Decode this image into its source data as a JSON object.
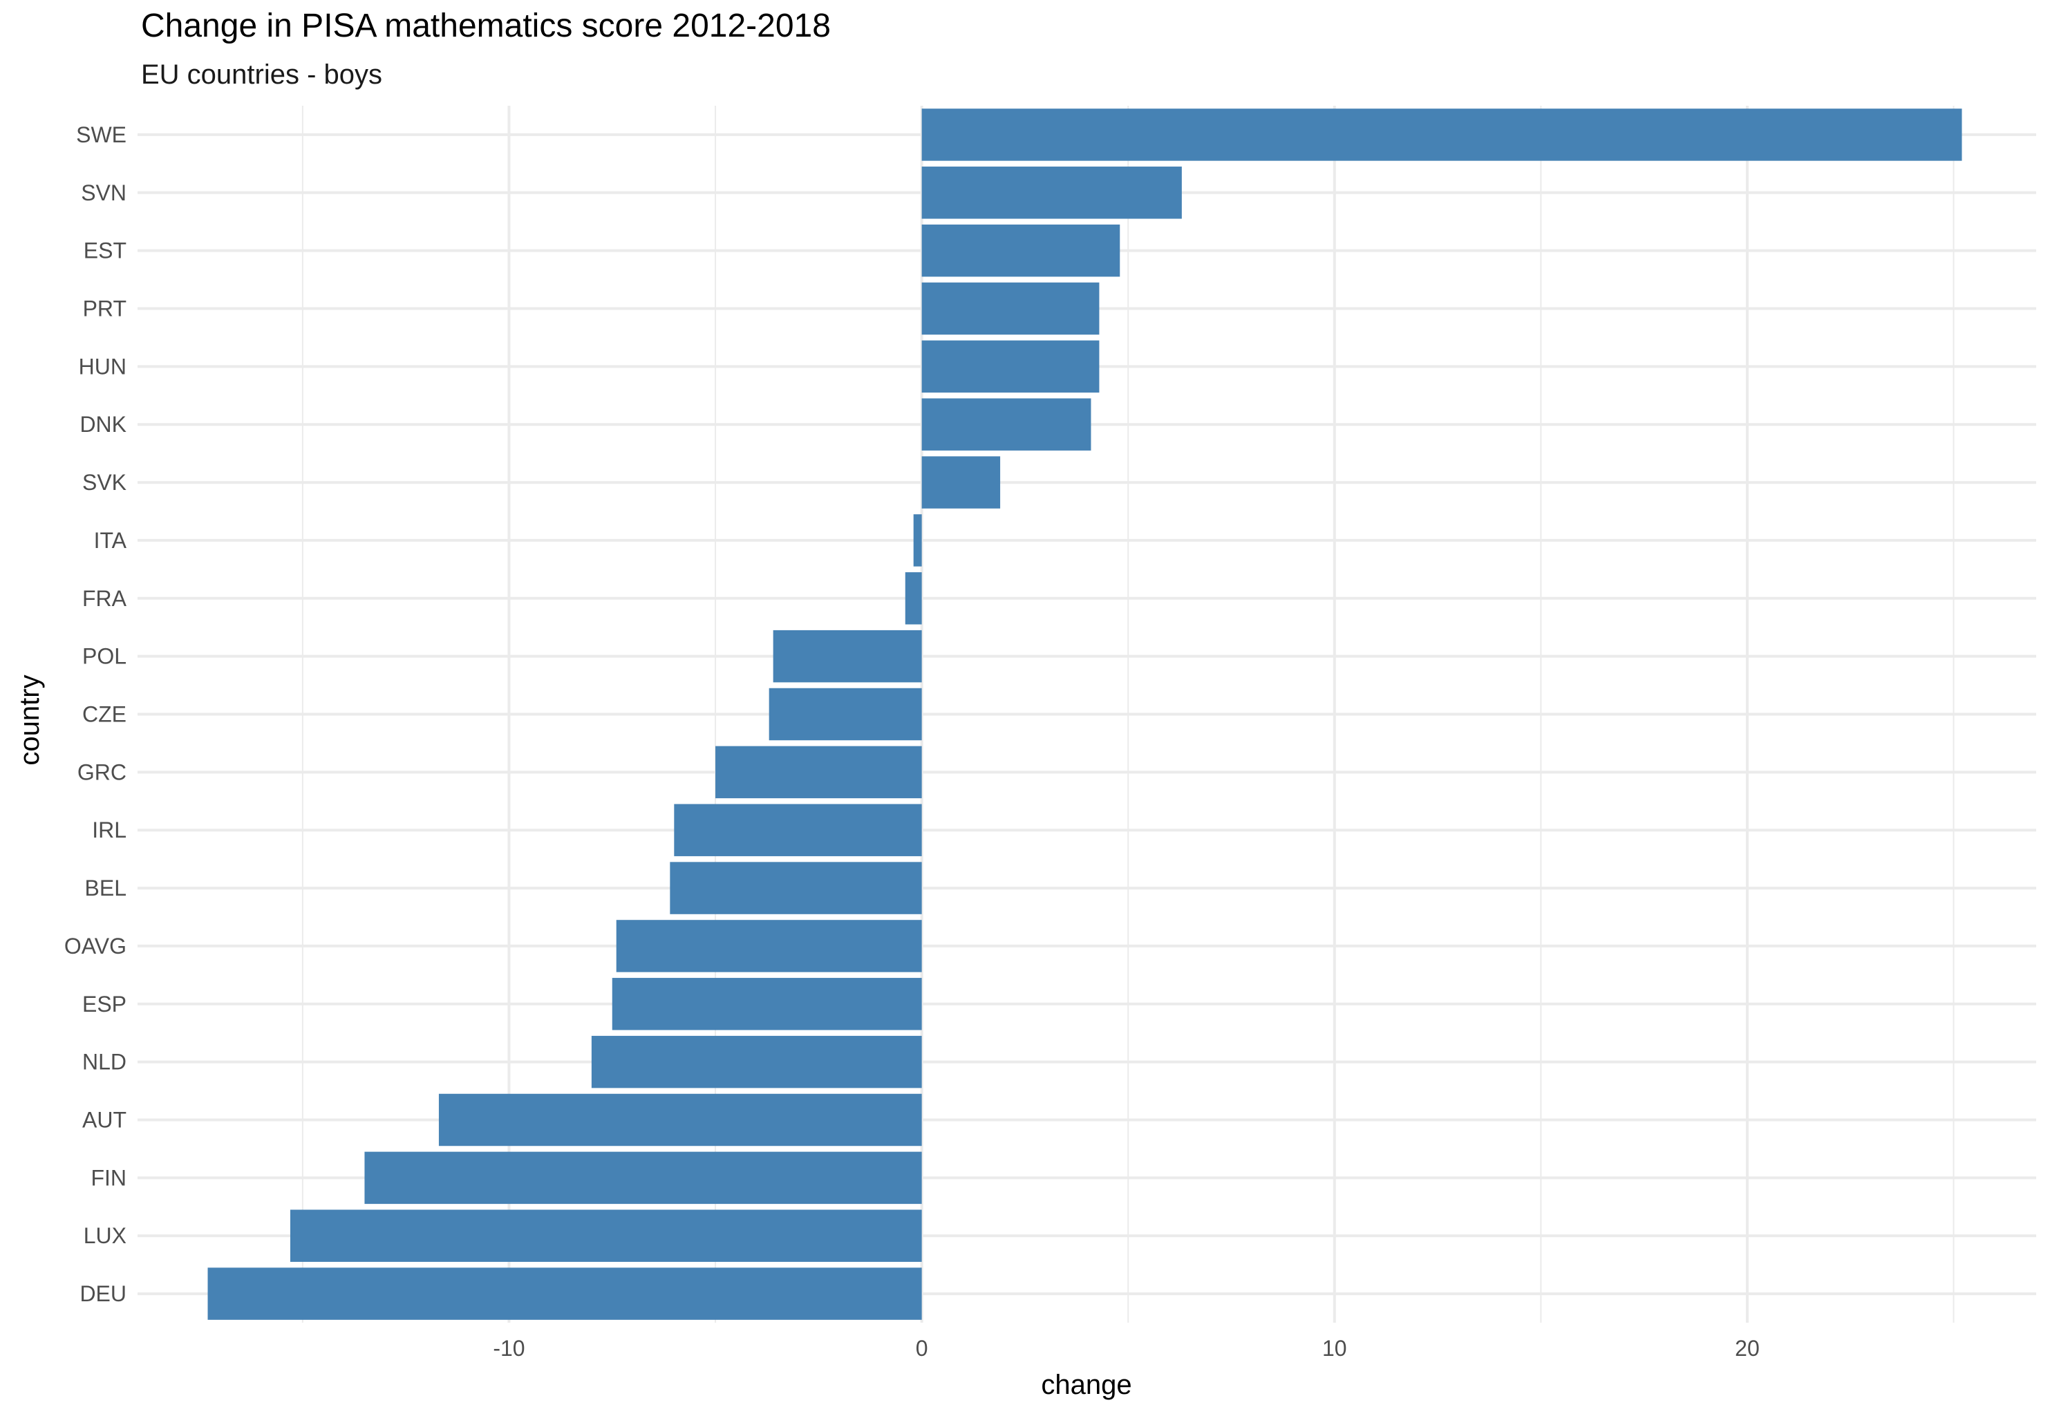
{
  "chart_data": {
    "type": "bar",
    "orientation": "horizontal",
    "title": "Change in PISA mathematics score 2012-2018",
    "subtitle": "EU countries - boys",
    "xlabel": "change",
    "ylabel": "country",
    "categories": [
      "SWE",
      "SVN",
      "EST",
      "PRT",
      "HUN",
      "DNK",
      "SVK",
      "ITA",
      "FRA",
      "POL",
      "CZE",
      "GRC",
      "IRL",
      "BEL",
      "OAVG",
      "ESP",
      "NLD",
      "AUT",
      "FIN",
      "LUX",
      "DEU"
    ],
    "values": [
      25.2,
      6.3,
      4.8,
      4.3,
      4.3,
      4.1,
      1.9,
      -0.2,
      -0.4,
      -3.6,
      -3.7,
      -5.0,
      -6.0,
      -6.1,
      -7.4,
      -7.5,
      -8.0,
      -11.7,
      -13.5,
      -15.3,
      -17.3
    ],
    "xlim": [
      -19.0,
      27.0
    ],
    "x_ticks": [
      -10,
      0,
      10,
      20
    ],
    "x_minor_ticks": [
      -15,
      -5,
      5,
      15,
      25
    ],
    "grid": true,
    "legend": "none",
    "bar_color": "#4682B4",
    "grid_color": "#EBEBEB"
  }
}
